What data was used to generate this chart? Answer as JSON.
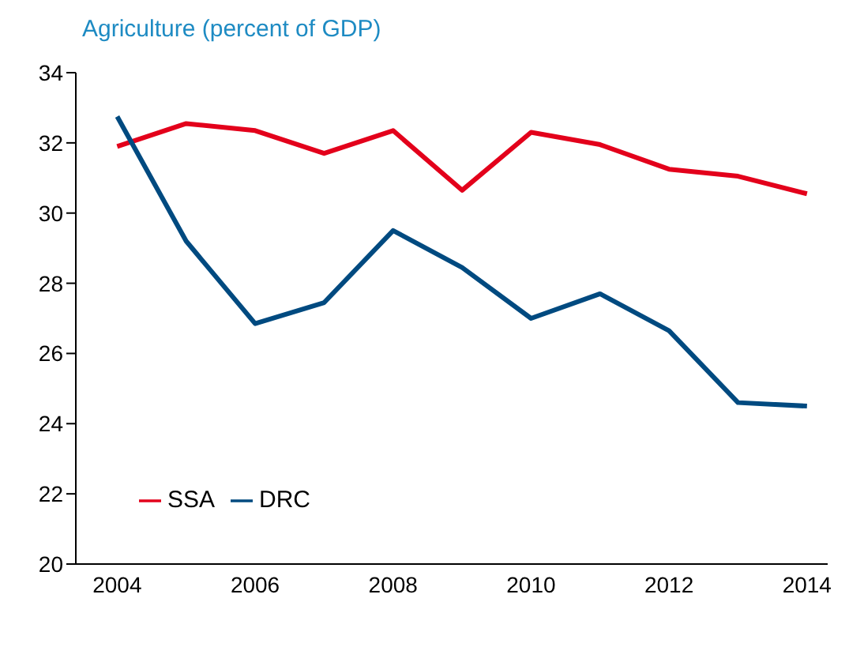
{
  "chart_data": {
    "type": "line",
    "title": "Agriculture (percent of GDP)",
    "x": [
      2004,
      2005,
      2006,
      2007,
      2008,
      2009,
      2010,
      2011,
      2012,
      2013,
      2014
    ],
    "series": [
      {
        "name": "SSA",
        "color": "#e3001b",
        "values": [
          31.9,
          32.55,
          32.35,
          31.7,
          32.35,
          30.65,
          32.3,
          31.95,
          31.25,
          31.05,
          30.55
        ]
      },
      {
        "name": "DRC",
        "color": "#004a80",
        "values": [
          32.75,
          29.2,
          26.85,
          27.45,
          29.5,
          28.45,
          27.0,
          27.7,
          26.65,
          24.6,
          24.5
        ]
      }
    ],
    "xlim": [
      2003.4,
      2014.3
    ],
    "xticks": [
      2004,
      2006,
      2008,
      2010,
      2012,
      2014
    ],
    "ylim": [
      20,
      34
    ],
    "yticks": [
      20,
      22,
      24,
      26,
      28,
      30,
      32,
      34
    ],
    "legend": "bottom left",
    "marker": "none",
    "line_style": "solid"
  }
}
